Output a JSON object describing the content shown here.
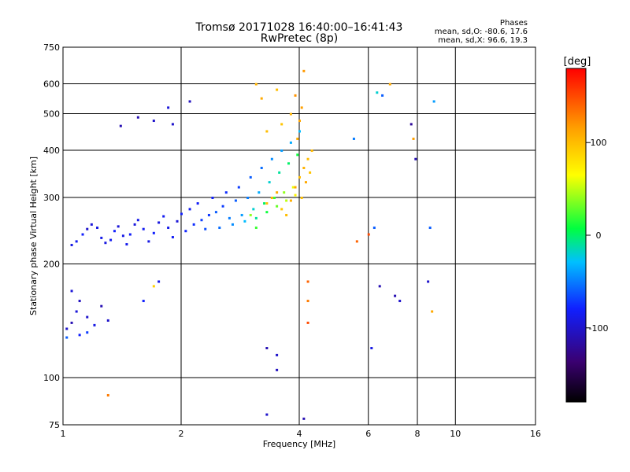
{
  "header": {
    "title_line1": "Tromsø 20171028 16:40:00–16:41:43",
    "title_line2": "RwPretec (8p)"
  },
  "phase_info": {
    "title": "Phases",
    "line_o": "mean, sd,O: -80.6, 17.6",
    "line_x": "mean, sd,X:  96.6, 19.3"
  },
  "chart_data": {
    "type": "scatter",
    "xlabel": "Frequency [MHz]",
    "ylabel": "Stationary phase Virtual Height [km]",
    "x_scale": "log",
    "y_scale": "log",
    "xlim": [
      1,
      16
    ],
    "ylim": [
      75,
      750
    ],
    "grid": true,
    "x_ticks": [
      1,
      2,
      4,
      6,
      8,
      10,
      16
    ],
    "y_ticks": [
      75,
      100,
      200,
      300,
      400,
      500,
      600,
      750
    ],
    "colorbar": {
      "label": "[deg]",
      "range": [
        -180,
        180
      ],
      "ticks": [
        100,
        0,
        -100
      ],
      "colors": [
        "#000000",
        "#3a0070",
        "#1020ff",
        "#00c0ff",
        "#00ff40",
        "#ffff00",
        "#ffa000",
        "#ff0000"
      ]
    },
    "series": [
      {
        "points": [
          [
            1.05,
            225,
            -90
          ],
          [
            1.08,
            230,
            -85
          ],
          [
            1.12,
            240,
            -80
          ],
          [
            1.15,
            248,
            -100
          ],
          [
            1.18,
            255,
            -95
          ],
          [
            1.22,
            250,
            -90
          ],
          [
            1.25,
            235,
            -88
          ],
          [
            1.28,
            228,
            -92
          ],
          [
            1.32,
            232,
            -85
          ],
          [
            1.35,
            245,
            -80
          ],
          [
            1.38,
            252,
            -95
          ],
          [
            1.42,
            238,
            -90
          ],
          [
            1.45,
            226,
            -87
          ],
          [
            1.48,
            240,
            -82
          ],
          [
            1.52,
            255,
            -93
          ],
          [
            1.55,
            262,
            -88
          ],
          [
            1.6,
            248,
            -85
          ],
          [
            1.65,
            230,
            -90
          ],
          [
            1.7,
            242,
            -80
          ],
          [
            1.75,
            258,
            -92
          ],
          [
            1.8,
            268,
            -85
          ],
          [
            1.85,
            250,
            -88
          ],
          [
            1.9,
            236,
            -83
          ],
          [
            1.95,
            260,
            -95
          ],
          [
            2.0,
            272,
            -80
          ],
          [
            2.05,
            245,
            -78
          ],
          [
            2.1,
            280,
            -85
          ],
          [
            2.15,
            255,
            -75
          ],
          [
            2.2,
            290,
            -82
          ],
          [
            2.25,
            262,
            -70
          ],
          [
            2.3,
            248,
            -65
          ],
          [
            2.35,
            270,
            -72
          ],
          [
            2.4,
            300,
            -80
          ],
          [
            2.45,
            275,
            -60
          ],
          [
            2.5,
            250,
            -55
          ],
          [
            2.55,
            285,
            -70
          ],
          [
            2.6,
            310,
            -75
          ],
          [
            2.65,
            265,
            -50
          ],
          [
            2.7,
            255,
            -45
          ],
          [
            2.75,
            295,
            -60
          ],
          [
            2.8,
            320,
            -70
          ],
          [
            2.85,
            270,
            -40
          ],
          [
            2.9,
            260,
            -30
          ],
          [
            2.95,
            300,
            -50
          ],
          [
            3.0,
            340,
            -60
          ],
          [
            3.05,
            280,
            -20
          ],
          [
            3.1,
            265,
            -10
          ],
          [
            3.15,
            310,
            -35
          ],
          [
            3.2,
            360,
            -55
          ],
          [
            3.25,
            290,
            0
          ],
          [
            3.3,
            275,
            10
          ],
          [
            3.35,
            330,
            -20
          ],
          [
            3.4,
            380,
            -45
          ],
          [
            3.45,
            300,
            20
          ],
          [
            3.5,
            285,
            30
          ],
          [
            3.55,
            350,
            -10
          ],
          [
            3.6,
            400,
            -40
          ],
          [
            3.65,
            310,
            40
          ],
          [
            3.7,
            295,
            50
          ],
          [
            3.75,
            370,
            0
          ],
          [
            3.8,
            420,
            -35
          ],
          [
            3.85,
            320,
            60
          ],
          [
            3.9,
            305,
            70
          ],
          [
            3.95,
            390,
            10
          ],
          [
            4.0,
            450,
            -30
          ],
          [
            3.3,
            290,
            100
          ],
          [
            3.4,
            300,
            105
          ],
          [
            3.5,
            310,
            110
          ],
          [
            3.6,
            280,
            95
          ],
          [
            3.7,
            270,
            100
          ],
          [
            3.8,
            295,
            108
          ],
          [
            3.9,
            320,
            112
          ],
          [
            4.0,
            340,
            100
          ],
          [
            4.05,
            300,
            98
          ],
          [
            4.1,
            360,
            105
          ],
          [
            4.15,
            330,
            110
          ],
          [
            4.2,
            380,
            100
          ],
          [
            4.25,
            350,
            96
          ],
          [
            4.3,
            400,
            102
          ],
          [
            3.95,
            430,
            108
          ],
          [
            4.0,
            480,
            112
          ],
          [
            4.05,
            520,
            115
          ],
          [
            3.1,
            600,
            105
          ],
          [
            3.2,
            550,
            110
          ],
          [
            3.5,
            580,
            100
          ],
          [
            3.9,
            560,
            120
          ],
          [
            4.1,
            650,
            118
          ],
          [
            3.8,
            500,
            104
          ],
          [
            3.6,
            470,
            96
          ],
          [
            3.3,
            450,
            100
          ],
          [
            1.02,
            135,
            -100
          ],
          [
            1.05,
            140,
            -110
          ],
          [
            1.08,
            150,
            -95
          ],
          [
            1.1,
            160,
            -105
          ],
          [
            1.15,
            145,
            -100
          ],
          [
            1.2,
            138,
            -90
          ],
          [
            1.25,
            155,
            -110
          ],
          [
            1.3,
            142,
            -100
          ],
          [
            1.05,
            170,
            -95
          ],
          [
            1.1,
            130,
            -80
          ],
          [
            1.02,
            128,
            -60
          ],
          [
            1.15,
            132,
            -70
          ],
          [
            1.55,
            490,
            -110
          ],
          [
            1.7,
            480,
            -100
          ],
          [
            1.85,
            520,
            -95
          ],
          [
            2.1,
            540,
            -105
          ],
          [
            1.9,
            470,
            -100
          ],
          [
            1.4,
            465,
            -110
          ],
          [
            1.75,
            180,
            -90
          ],
          [
            1.6,
            160,
            -80
          ],
          [
            3.3,
            120,
            -110
          ],
          [
            3.3,
            80,
            -100
          ],
          [
            3.5,
            105,
            -105
          ],
          [
            4.1,
            78,
            -110
          ],
          [
            3.5,
            115,
            -100
          ],
          [
            6.2,
            250,
            -60
          ],
          [
            6.4,
            175,
            -110
          ],
          [
            6.8,
            600,
            110
          ],
          [
            7.0,
            165,
            -110
          ],
          [
            7.2,
            160,
            -100
          ],
          [
            7.8,
            430,
            115
          ],
          [
            7.9,
            380,
            -110
          ],
          [
            8.5,
            180,
            -100
          ],
          [
            8.6,
            250,
            -60
          ],
          [
            8.7,
            150,
            110
          ],
          [
            8.8,
            540,
            -40
          ],
          [
            6.1,
            120,
            -90
          ],
          [
            5.5,
            430,
            -50
          ],
          [
            6.3,
            570,
            -20
          ],
          [
            6.5,
            560,
            -60
          ],
          [
            7.7,
            470,
            -120
          ],
          [
            1.3,
            90,
            130
          ],
          [
            5.6,
            230,
            140
          ],
          [
            6.0,
            240,
            150
          ],
          [
            4.2,
            180,
            140
          ],
          [
            4.2,
            160,
            130
          ],
          [
            4.2,
            140,
            150
          ],
          [
            1.7,
            175,
            90
          ],
          [
            3.0,
            270,
            40
          ],
          [
            3.1,
            250,
            20
          ]
        ]
      }
    ]
  }
}
